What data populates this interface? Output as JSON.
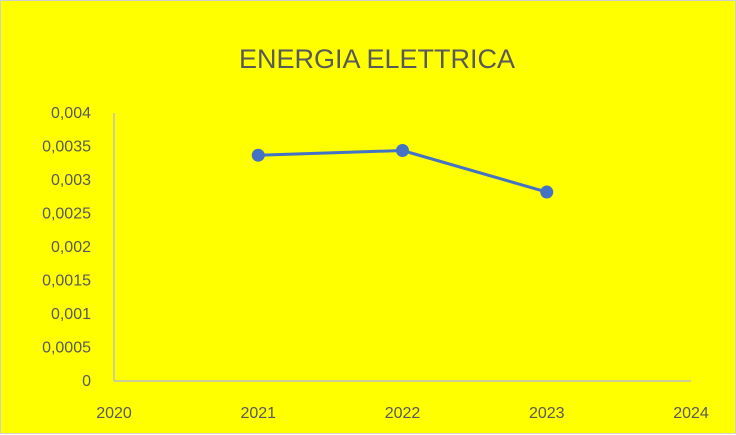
{
  "colors": {
    "background": "#ffff00",
    "series": "#4472c4",
    "axis": "#bfbfbf",
    "text": "#595959"
  },
  "chart_data": {
    "type": "scatter",
    "title": "ENERGIA ELETTRICA",
    "xlabel": "",
    "ylabel": "",
    "xlim": [
      2020,
      2024
    ],
    "ylim": [
      0,
      0.004
    ],
    "x_ticks": [
      "2020",
      "2021",
      "2022",
      "2023",
      "2024"
    ],
    "y_ticks": [
      "0",
      "0,0005",
      "0,001",
      "0,0015",
      "0,002",
      "0,0025",
      "0,003",
      "0,0035",
      "0,004"
    ],
    "grid": false,
    "legend": "none",
    "series": [
      {
        "x": [
          2021,
          2022,
          2023
        ],
        "y": [
          0.00337,
          0.00344,
          0.00282
        ],
        "line": true,
        "markers": true
      }
    ]
  }
}
